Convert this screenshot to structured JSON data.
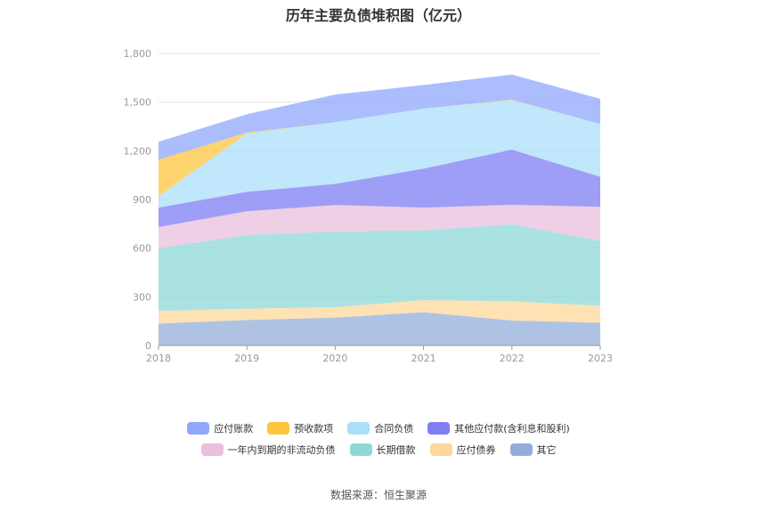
{
  "chart_data": {
    "type": "area",
    "stacked": true,
    "title": "历年主要负债堆积图（亿元）",
    "x": [
      "2018",
      "2019",
      "2020",
      "2021",
      "2022",
      "2023"
    ],
    "ylim": [
      0,
      1800
    ],
    "yticks": [
      0,
      300,
      600,
      900,
      1200,
      1500,
      1800
    ],
    "grid": true,
    "legend_position": "bottom",
    "series": [
      {
        "name": "其它",
        "color": "#93ADDB",
        "values": [
          135,
          157,
          172,
          205,
          154,
          140
        ]
      },
      {
        "name": "应付债券",
        "color": "#FDD89A",
        "values": [
          78,
          70,
          64,
          75,
          118,
          105
        ]
      },
      {
        "name": "长期借款",
        "color": "#8ED8D8",
        "values": [
          385,
          455,
          465,
          430,
          475,
          400
        ]
      },
      {
        "name": "一年内到期的非流动负债",
        "color": "#EABFDC",
        "values": [
          132,
          145,
          165,
          140,
          120,
          210
        ]
      },
      {
        "name": "其他应付款(含利息和股利)",
        "color": "#7F7EF3",
        "values": [
          120,
          120,
          130,
          240,
          340,
          185
        ]
      },
      {
        "name": "合同负债",
        "color": "#ABDFF9",
        "values": [
          70,
          360,
          380,
          370,
          305,
          325
        ]
      },
      {
        "name": "预收款项",
        "color": "#FDC53E",
        "values": [
          225,
          5,
          0,
          0,
          3,
          0
        ]
      },
      {
        "name": "应付账款",
        "color": "#8FA7FC",
        "values": [
          110,
          113,
          170,
          145,
          155,
          155
        ]
      }
    ]
  },
  "legend_order": [
    "应付账款",
    "预收款项",
    "合同负债",
    "其他应付款(含利息和股利)",
    "一年内到期的非流动负债",
    "长期借款",
    "应付债券",
    "其它"
  ],
  "source": "数据来源：恒生聚源"
}
